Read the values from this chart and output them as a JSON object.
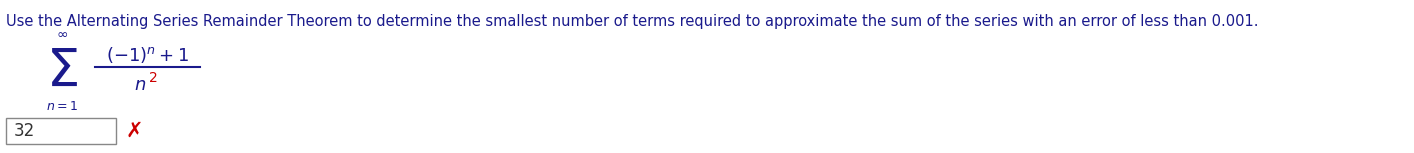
{
  "main_text": "Use the Alternating Series Remainder Theorem to determine the smallest number of terms required to approximate the sum of the series with an error of less than 0.001.",
  "main_text_color": "#1a1a8c",
  "main_text_fontsize": 10.5,
  "formula_color": "#1a1a8c",
  "denom_exp_color": "#cc0000",
  "answer_text": "32",
  "answer_fontsize": 12,
  "answer_color": "#333333",
  "cross_color": "#cc0000",
  "cross_fontsize": 15,
  "background_color": "#ffffff",
  "fig_width": 14.14,
  "fig_height": 1.53,
  "dpi": 100
}
